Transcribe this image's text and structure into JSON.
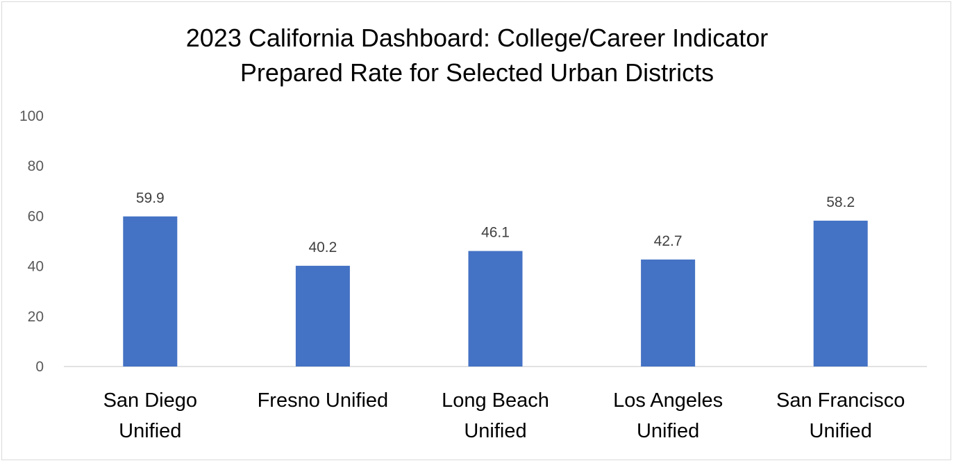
{
  "chart_data": {
    "type": "bar",
    "title_lines": [
      "2023 California Dashboard: College/Career Indicator",
      "Prepared Rate for Selected Urban Districts"
    ],
    "categories": [
      [
        "San Diego",
        "Unified"
      ],
      [
        "Fresno Unified"
      ],
      [
        "Long Beach",
        "Unified"
      ],
      [
        "Los Angeles",
        "Unified"
      ],
      [
        "San Francisco",
        "Unified"
      ]
    ],
    "values": [
      59.9,
      40.2,
      46.1,
      42.7,
      58.2
    ],
    "data_labels": [
      "59.9",
      "40.2",
      "46.1",
      "42.7",
      "58.2"
    ],
    "ylim": [
      0,
      100
    ],
    "yticks": [
      "0",
      "20",
      "40",
      "60",
      "80",
      "100"
    ],
    "grid": false,
    "bar_color": "#4472c4"
  }
}
